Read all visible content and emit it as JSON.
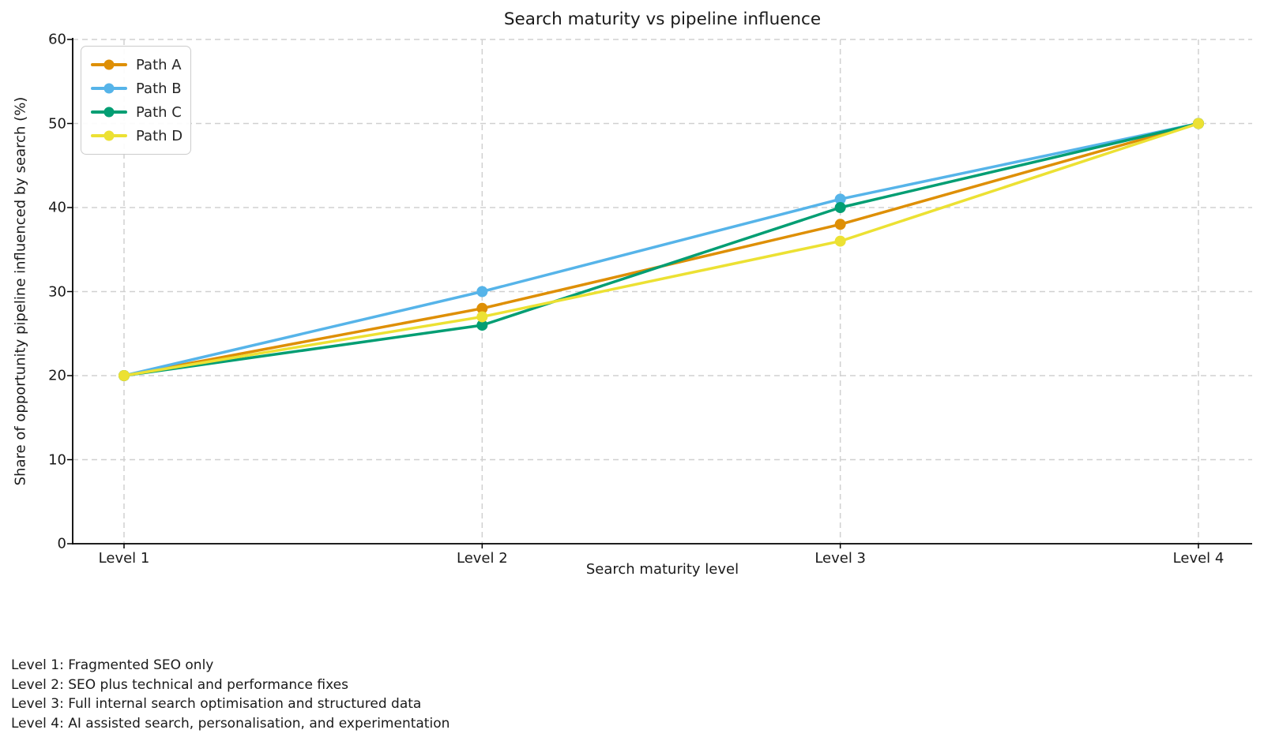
{
  "chart_data": {
    "type": "line",
    "title": "Search maturity vs pipeline influence",
    "xlabel": "Search maturity level",
    "ylabel": "Share of opportunity pipeline influenced by search (%)",
    "categories": [
      "Level 1",
      "Level 2",
      "Level 3",
      "Level 4"
    ],
    "yticks": [
      0,
      10,
      20,
      30,
      40,
      50,
      60
    ],
    "ylim": [
      0,
      60
    ],
    "grid": true,
    "grid_style": "dashed",
    "legend_position": "upper left",
    "series": [
      {
        "name": "Path A",
        "color": "#DE8F05",
        "values": [
          20,
          28,
          38,
          50
        ]
      },
      {
        "name": "Path B",
        "color": "#56B4E9",
        "values": [
          20,
          30,
          41,
          50
        ]
      },
      {
        "name": "Path C",
        "color": "#029E73",
        "values": [
          20,
          26,
          40,
          50
        ]
      },
      {
        "name": "Path D",
        "color": "#ECE133",
        "values": [
          20,
          27,
          36,
          50
        ]
      }
    ],
    "colors": {
      "spine": "#000000",
      "grid": "#d0d0d0",
      "text": "#1a1a1a"
    }
  },
  "annotations": [
    "Level 1: Fragmented SEO only",
    "Level 2: SEO plus technical and performance fixes",
    "Level 3: Full internal search optimisation and structured data",
    "Level 4: AI assisted search, personalisation, and experimentation"
  ]
}
